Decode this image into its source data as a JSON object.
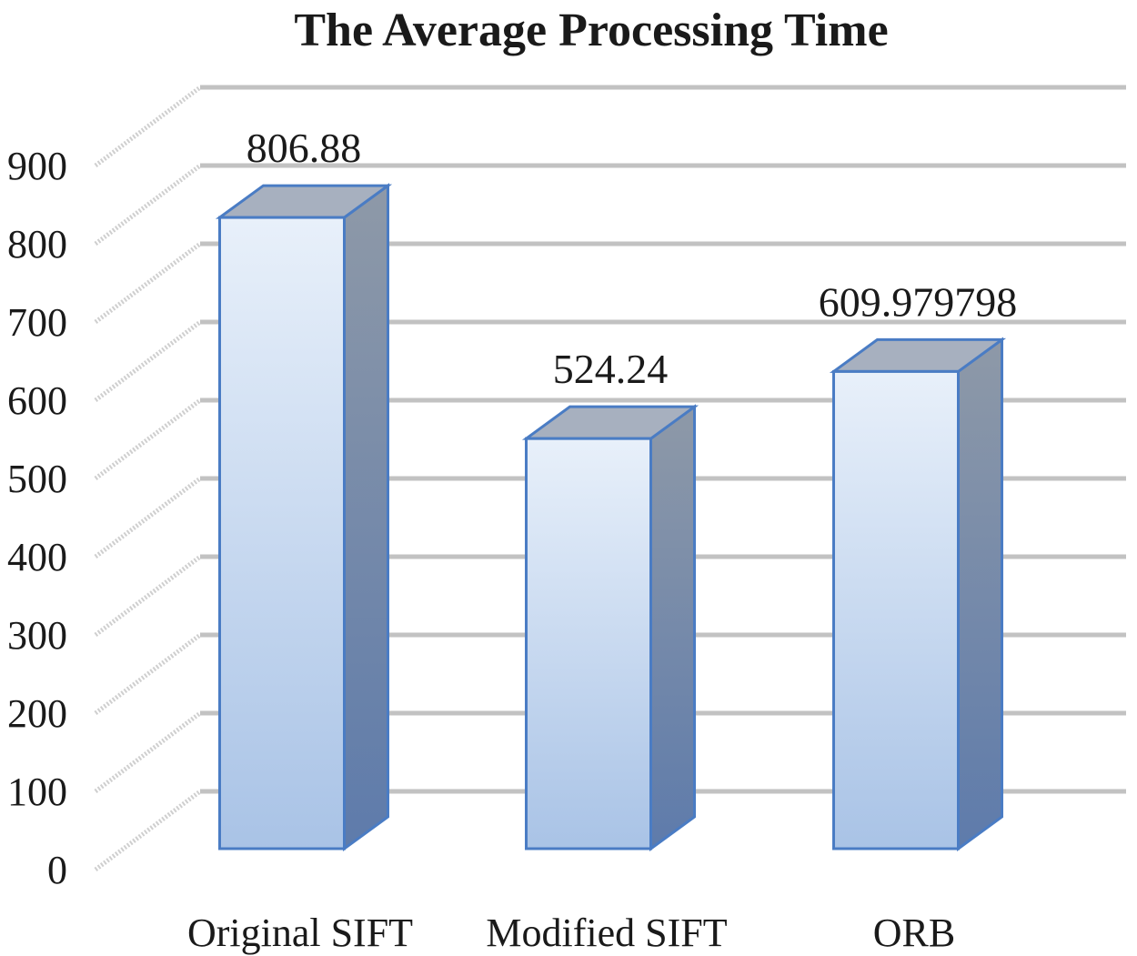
{
  "chart_data": {
    "type": "bar",
    "title": "The Average Processing Time",
    "categories": [
      "Original SIFT",
      "Modified SIFT",
      "ORB"
    ],
    "values": [
      806.88,
      524.24,
      609.979798
    ],
    "value_labels": [
      "806.88",
      "524.24",
      "609.979798"
    ],
    "ylim": [
      0,
      900
    ],
    "yticks": [
      0,
      100,
      200,
      300,
      400,
      500,
      600,
      700,
      800,
      900
    ],
    "ytick_labels": [
      "0",
      "100",
      "200",
      "300",
      "400",
      "500",
      "600",
      "700",
      "800",
      "900"
    ],
    "xlabel": "",
    "ylabel": "",
    "grid": true,
    "style": "3d-column",
    "colors": {
      "front_top": "#e8f0fa",
      "front_bottom": "#a9c3e6",
      "side_top": "#8e99a8",
      "side_bottom": "#5e7bab",
      "top_face": "#a7b0bf",
      "edge": "#4a7cc4",
      "grid_back": "#c2c2c2",
      "grid_side": "#cfcfcf"
    }
  }
}
